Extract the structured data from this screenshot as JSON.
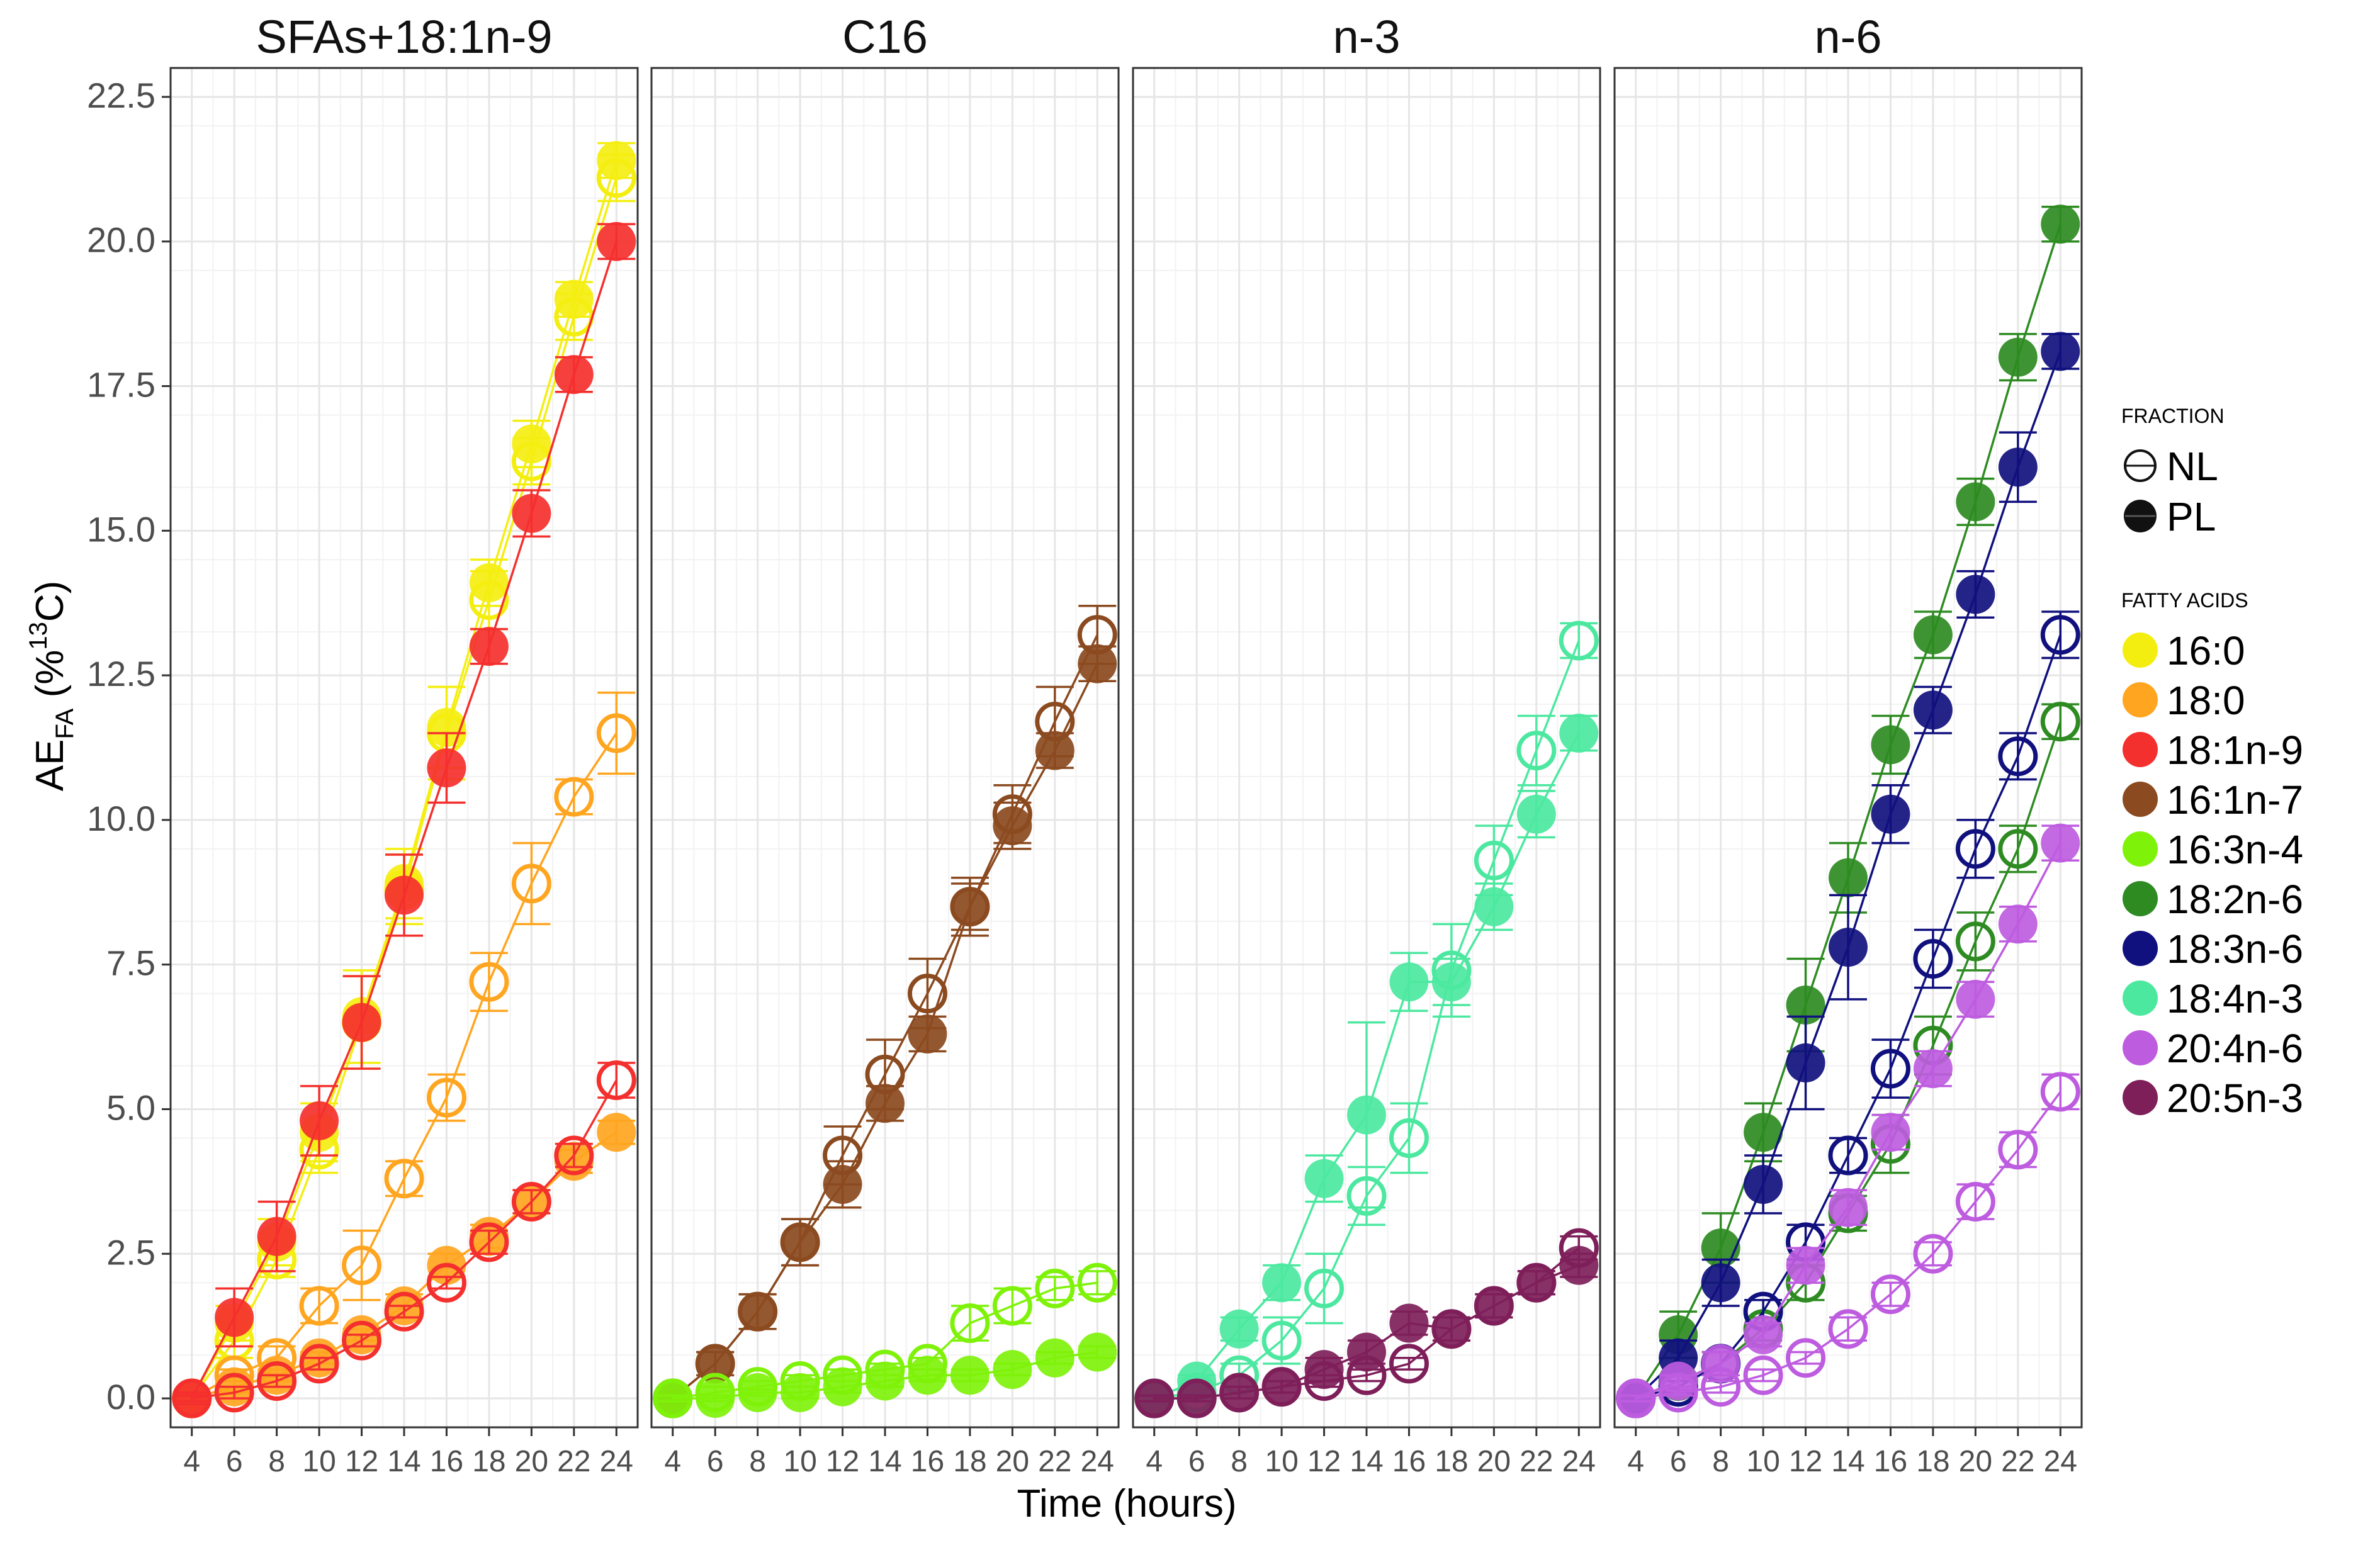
{
  "chart_data": {
    "type": "line",
    "xlabel": "Time (hours)",
    "ylabel_main": "AE",
    "ylabel_sub": "FA",
    "ylabel_paren": " (%",
    "ylabel_sup": "13",
    "ylabel_end": "C)",
    "ylim": [
      -0.5,
      23
    ],
    "xlim": [
      3,
      25
    ],
    "y_ticks": [
      "0.0",
      "2.5",
      "5.0",
      "7.5",
      "10.0",
      "12.5",
      "15.0",
      "17.5",
      "20.0",
      "22.5"
    ],
    "x_ticks": [
      "4",
      "6",
      "8",
      "10",
      "12",
      "14",
      "16",
      "18",
      "20",
      "22",
      "24"
    ],
    "x": [
      4,
      6,
      8,
      10,
      12,
      14,
      16,
      18,
      20,
      22,
      24
    ],
    "grid": true,
    "legend_position": "right",
    "fraction_legend": {
      "title": "FRACTION",
      "items": [
        {
          "label": "NL",
          "marker": "open"
        },
        {
          "label": "PL",
          "marker": "filled"
        }
      ]
    },
    "fatty_acid_legend": {
      "title": "FATTY ACIDS",
      "items": [
        {
          "label": "16:0",
          "color": "#F4EE10"
        },
        {
          "label": "18:0",
          "color": "#FFA51F"
        },
        {
          "label": "18:1n-9",
          "color": "#F4302E"
        },
        {
          "label": "16:1n-7",
          "color": "#8B4A1F"
        },
        {
          "label": "16:3n-4",
          "color": "#7FF20A"
        },
        {
          "label": "18:2n-6",
          "color": "#2E8B22"
        },
        {
          "label": "18:3n-6",
          "color": "#10107E"
        },
        {
          "label": "18:4n-3",
          "color": "#4CE8A0"
        },
        {
          "label": "20:4n-6",
          "color": "#BE5CE0"
        },
        {
          "label": "20:5n-3",
          "color": "#7E1F5A"
        }
      ]
    },
    "panels": [
      {
        "title": "SFAs+18:1n-9",
        "series": [
          {
            "fatty_acid": "16:0",
            "fraction": "NL",
            "color": "#F4EE10",
            "values": [
              0.0,
              1.0,
              2.4,
              4.3,
              6.5,
              8.8,
              11.5,
              13.8,
              16.2,
              18.7,
              21.1
            ],
            "err": [
              0.1,
              0.3,
              0.3,
              0.4,
              0.8,
              0.6,
              0.8,
              0.5,
              0.4,
              0.4,
              0.4
            ]
          },
          {
            "fatty_acid": "16:0",
            "fraction": "PL",
            "color": "#F4EE10",
            "values": [
              0.0,
              1.3,
              2.7,
              4.6,
              6.6,
              8.9,
              11.6,
              14.1,
              16.5,
              19.0,
              21.4
            ],
            "err": [
              0.1,
              0.3,
              0.4,
              0.5,
              0.8,
              0.6,
              0.7,
              0.4,
              0.4,
              0.3,
              0.3
            ]
          },
          {
            "fatty_acid": "18:0",
            "fraction": "NL",
            "color": "#FFA51F",
            "values": [
              0.0,
              0.4,
              0.7,
              1.6,
              2.3,
              3.8,
              5.2,
              7.2,
              8.9,
              10.4,
              11.5
            ],
            "err": [
              0.1,
              0.1,
              0.2,
              0.3,
              0.6,
              0.3,
              0.4,
              0.5,
              0.7,
              0.3,
              0.7
            ]
          },
          {
            "fatty_acid": "18:0",
            "fraction": "PL",
            "color": "#FFA51F",
            "values": [
              0.0,
              0.2,
              0.4,
              0.7,
              1.1,
              1.6,
              2.3,
              2.8,
              3.4,
              4.1,
              4.6
            ],
            "err": [
              0.05,
              0.1,
              0.1,
              0.1,
              0.1,
              0.2,
              0.2,
              0.2,
              0.2,
              0.2,
              0.2
            ]
          },
          {
            "fatty_acid": "18:1n-9",
            "fraction": "NL",
            "color": "#F4302E",
            "values": [
              0.0,
              0.1,
              0.3,
              0.6,
              1.0,
              1.5,
              2.0,
              2.7,
              3.4,
              4.2,
              5.5
            ],
            "err": [
              0.05,
              0.1,
              0.1,
              0.1,
              0.1,
              0.1,
              0.1,
              0.2,
              0.2,
              0.2,
              0.3
            ]
          },
          {
            "fatty_acid": "18:1n-9",
            "fraction": "PL",
            "color": "#F4302E",
            "values": [
              0.0,
              1.4,
              2.8,
              4.8,
              6.5,
              8.7,
              10.9,
              13.0,
              15.3,
              17.7,
              20.0
            ],
            "err": [
              0.1,
              0.5,
              0.6,
              0.6,
              0.8,
              0.7,
              0.6,
              0.3,
              0.4,
              0.3,
              0.3
            ]
          }
        ]
      },
      {
        "title": "C16",
        "series": [
          {
            "fatty_acid": "16:1n-7",
            "fraction": "NL",
            "color": "#8B4A1F",
            "values": [
              0.0,
              0.6,
              1.5,
              2.7,
              4.2,
              5.6,
              7.0,
              8.5,
              10.1,
              11.7,
              13.2
            ],
            "err": [
              0.1,
              0.2,
              0.3,
              0.4,
              0.5,
              0.6,
              0.6,
              0.5,
              0.5,
              0.6,
              0.5
            ]
          },
          {
            "fatty_acid": "16:1n-7",
            "fraction": "PL",
            "color": "#8B4A1F",
            "values": [
              0.0,
              0.6,
              1.5,
              2.7,
              3.7,
              5.1,
              6.3,
              8.5,
              9.9,
              11.2,
              12.7
            ],
            "err": [
              0.1,
              0.2,
              0.3,
              0.4,
              0.4,
              0.3,
              0.3,
              0.4,
              0.4,
              0.3,
              0.3
            ]
          },
          {
            "fatty_acid": "16:3n-4",
            "fraction": "NL",
            "color": "#7FF20A",
            "values": [
              0.0,
              0.1,
              0.2,
              0.3,
              0.4,
              0.5,
              0.6,
              1.3,
              1.6,
              1.9,
              2.0
            ],
            "err": [
              0.05,
              0.1,
              0.1,
              0.1,
              0.1,
              0.1,
              0.1,
              0.3,
              0.3,
              0.2,
              0.2
            ]
          },
          {
            "fatty_acid": "16:3n-4",
            "fraction": "PL",
            "color": "#7FF20A",
            "values": [
              0.0,
              0.0,
              0.1,
              0.1,
              0.2,
              0.3,
              0.4,
              0.4,
              0.5,
              0.7,
              0.8
            ],
            "err": [
              0.05,
              0.05,
              0.05,
              0.1,
              0.1,
              0.1,
              0.1,
              0.1,
              0.1,
              0.1,
              0.1
            ]
          }
        ]
      },
      {
        "title": "n-3",
        "series": [
          {
            "fatty_acid": "18:4n-3",
            "fraction": "NL",
            "color": "#4CE8A0",
            "values": [
              0.0,
              0.1,
              0.4,
              1.0,
              1.9,
              3.5,
              4.5,
              7.4,
              9.3,
              11.2,
              13.1
            ],
            "err": [
              0.05,
              0.1,
              0.2,
              0.4,
              0.6,
              0.5,
              0.6,
              0.8,
              0.6,
              0.6,
              0.3
            ]
          },
          {
            "fatty_acid": "18:4n-3",
            "fraction": "PL",
            "color": "#4CE8A0",
            "values": [
              0.0,
              0.3,
              1.2,
              2.0,
              3.8,
              4.9,
              7.2,
              7.2,
              8.5,
              10.1,
              11.5
            ],
            "err": [
              0.05,
              0.1,
              0.2,
              0.3,
              0.4,
              1.6,
              0.5,
              0.4,
              0.4,
              0.4,
              0.3
            ]
          },
          {
            "fatty_acid": "20:5n-3",
            "fraction": "NL",
            "color": "#7E1F5A",
            "values": [
              0.0,
              0.0,
              0.1,
              0.2,
              0.3,
              0.4,
              0.6,
              1.2,
              1.6,
              2.0,
              2.6
            ],
            "err": [
              0.05,
              0.05,
              0.1,
              0.1,
              0.1,
              0.1,
              0.1,
              0.2,
              0.2,
              0.2,
              0.2
            ]
          },
          {
            "fatty_acid": "20:5n-3",
            "fraction": "PL",
            "color": "#7E1F5A",
            "values": [
              0.0,
              0.0,
              0.1,
              0.2,
              0.5,
              0.8,
              1.3,
              1.2,
              1.6,
              2.0,
              2.3
            ],
            "err": [
              0.05,
              0.05,
              0.1,
              0.1,
              0.2,
              0.2,
              0.2,
              0.2,
              0.2,
              0.2,
              0.2
            ]
          }
        ]
      },
      {
        "title": "n-6",
        "series": [
          {
            "fatty_acid": "18:2n-6",
            "fraction": "NL",
            "color": "#2E8B22",
            "values": [
              0.0,
              0.3,
              0.6,
              1.2,
              2.0,
              3.2,
              4.4,
              6.1,
              7.9,
              9.5,
              11.7
            ],
            "err": [
              0.05,
              0.1,
              0.2,
              0.2,
              0.3,
              0.3,
              0.5,
              0.5,
              0.5,
              0.4,
              0.3
            ]
          },
          {
            "fatty_acid": "18:2n-6",
            "fraction": "PL",
            "color": "#2E8B22",
            "values": [
              0.0,
              1.1,
              2.6,
              4.6,
              6.8,
              9.0,
              11.3,
              13.2,
              15.5,
              18.0,
              20.3
            ],
            "err": [
              0.1,
              0.4,
              0.6,
              0.5,
              0.8,
              0.6,
              0.5,
              0.4,
              0.4,
              0.4,
              0.3
            ]
          },
          {
            "fatty_acid": "18:3n-6",
            "fraction": "NL",
            "color": "#10107E",
            "values": [
              0.0,
              0.2,
              0.6,
              1.5,
              2.7,
              4.2,
              5.7,
              7.6,
              9.5,
              11.1,
              13.2
            ],
            "err": [
              0.05,
              0.1,
              0.2,
              0.2,
              0.3,
              0.3,
              0.5,
              0.5,
              0.5,
              0.4,
              0.4
            ]
          },
          {
            "fatty_acid": "18:3n-6",
            "fraction": "PL",
            "color": "#10107E",
            "values": [
              0.0,
              0.7,
              2.0,
              3.7,
              5.8,
              7.8,
              10.1,
              11.9,
              13.9,
              16.1,
              18.1
            ],
            "err": [
              0.1,
              0.3,
              0.4,
              0.5,
              0.8,
              0.9,
              0.5,
              0.4,
              0.4,
              0.6,
              0.3
            ]
          },
          {
            "fatty_acid": "20:4n-6",
            "fraction": "NL",
            "color": "#BE5CE0",
            "values": [
              0.0,
              0.1,
              0.2,
              0.4,
              0.7,
              1.2,
              1.8,
              2.5,
              3.4,
              4.3,
              5.3
            ],
            "err": [
              0.05,
              0.05,
              0.1,
              0.1,
              0.1,
              0.2,
              0.2,
              0.2,
              0.3,
              0.3,
              0.3
            ]
          },
          {
            "fatty_acid": "20:4n-6",
            "fraction": "PL",
            "color": "#BE5CE0",
            "values": [
              0.0,
              0.3,
              0.6,
              1.1,
              2.3,
              3.3,
              4.6,
              5.7,
              6.9,
              8.2,
              9.6
            ],
            "err": [
              0.05,
              0.1,
              0.2,
              0.2,
              0.3,
              0.3,
              0.3,
              0.3,
              0.3,
              0.3,
              0.3
            ]
          }
        ]
      }
    ]
  }
}
